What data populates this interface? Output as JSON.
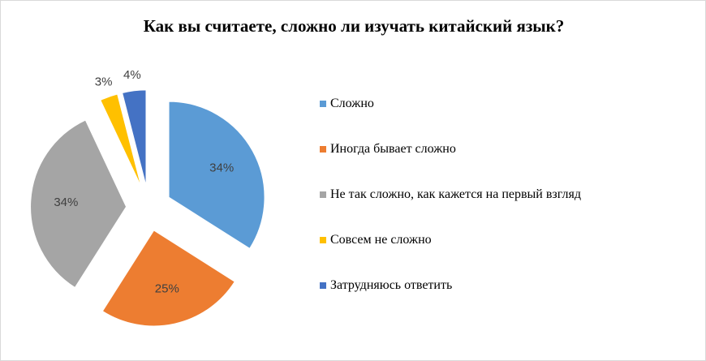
{
  "chart_data": {
    "type": "pie",
    "title": "Как вы считаете,  сложно ли изучать  китайский  язык?",
    "categories": [
      "Сложно",
      "Иногда бывает сложно",
      "Не так сложно, как кажется на первый взгляд",
      "Совсем не сложно",
      "Затрудняюсь ответить"
    ],
    "values": [
      34,
      25,
      34,
      3,
      4
    ],
    "value_labels": [
      "34%",
      "25%",
      "34%",
      "3%",
      "4%"
    ],
    "colors": [
      "#5b9bd5",
      "#ed7d31",
      "#a5a5a5",
      "#ffc000",
      "#4472c4"
    ],
    "legend": "right"
  }
}
